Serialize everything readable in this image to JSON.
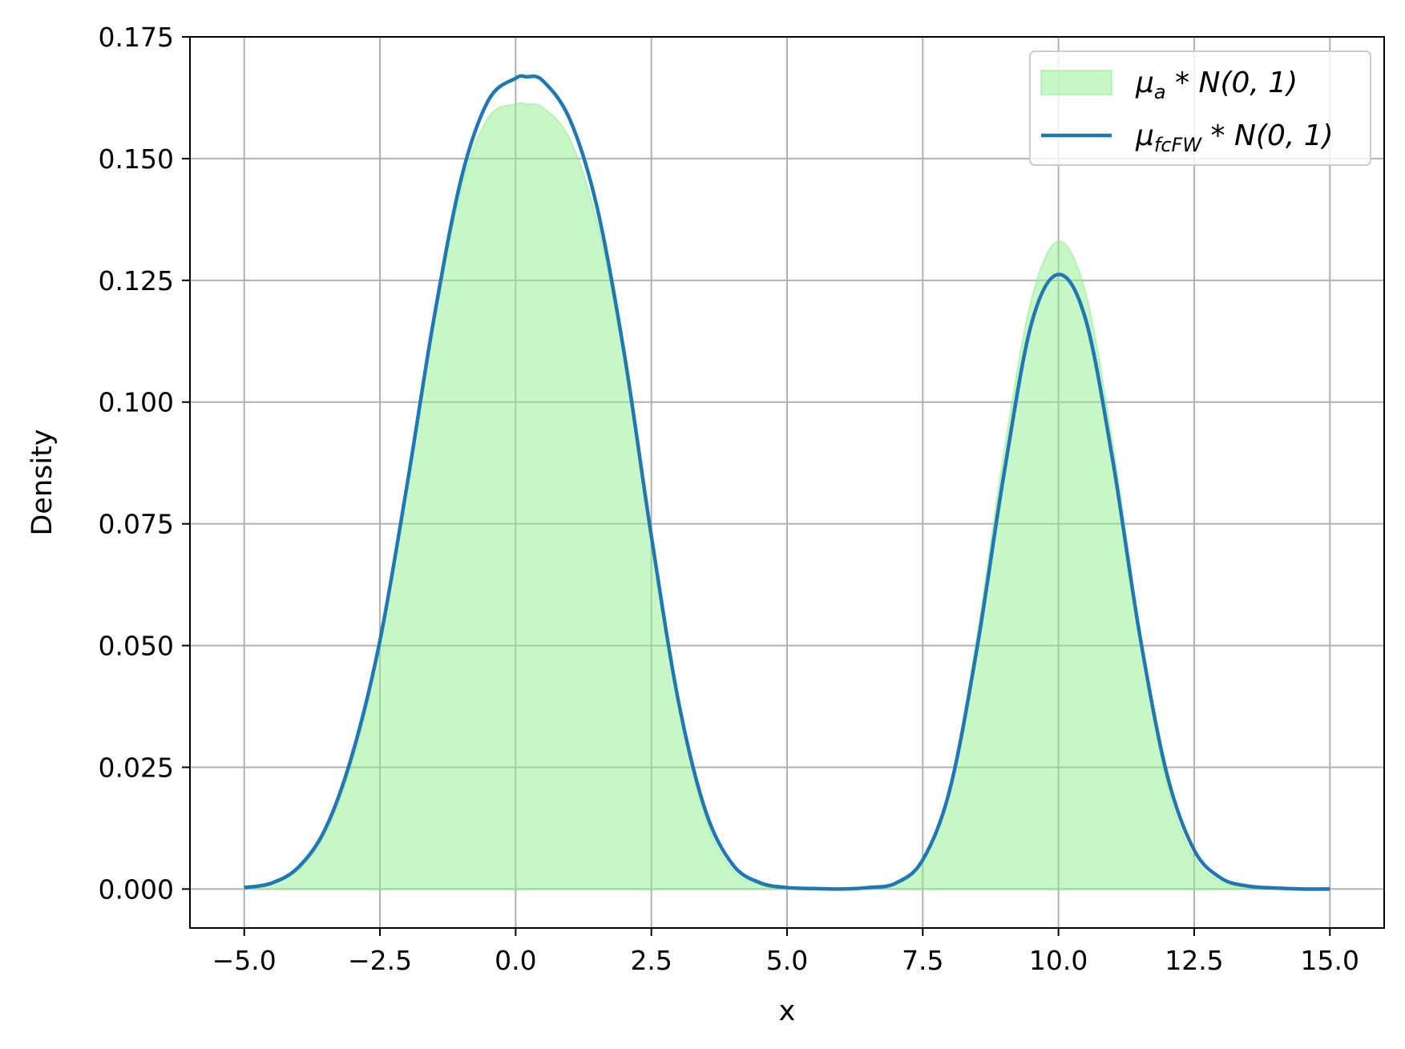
{
  "chart_data": {
    "type": "area",
    "title": "",
    "xlabel": "x",
    "ylabel": "Density",
    "xlim": [
      -6,
      16
    ],
    "ylim": [
      -0.008,
      0.175
    ],
    "xticks": [
      -5.0,
      -2.5,
      0.0,
      2.5,
      5.0,
      7.5,
      10.0,
      12.5,
      15.0
    ],
    "xtick_labels": [
      "−5.0",
      "−2.5",
      "0.0",
      "2.5",
      "5.0",
      "7.5",
      "10.0",
      "12.5",
      "15.0"
    ],
    "yticks": [
      0.0,
      0.025,
      0.05,
      0.075,
      0.1,
      0.125,
      0.15,
      0.175
    ],
    "ytick_labels": [
      "0.000",
      "0.025",
      "0.050",
      "0.075",
      "0.100",
      "0.125",
      "0.150",
      "0.175"
    ],
    "grid": true,
    "legend_position": "top-right",
    "x": [
      -5.0,
      -4.5,
      -4.0,
      -3.5,
      -3.0,
      -2.5,
      -2.0,
      -1.5,
      -1.0,
      -0.5,
      0.0,
      0.2,
      0.5,
      1.0,
      1.5,
      2.0,
      2.5,
      3.0,
      3.5,
      4.0,
      4.5,
      5.0,
      5.5,
      6.0,
      6.5,
      7.0,
      7.5,
      8.0,
      8.5,
      9.0,
      9.5,
      10.0,
      10.5,
      11.0,
      11.5,
      12.0,
      12.5,
      13.0,
      13.5,
      14.0,
      14.5,
      15.0
    ],
    "series": [
      {
        "name": "μ_a * N(0, 1)",
        "legend_main": "μ",
        "legend_sub": "a",
        "legend_tail": " * N(0, 1)",
        "style": "filled",
        "color": "#90ee90",
        "values": [
          0.0003,
          0.0011,
          0.004,
          0.0115,
          0.0265,
          0.05,
          0.082,
          0.116,
          0.144,
          0.1585,
          0.1612,
          0.1612,
          0.1605,
          0.154,
          0.137,
          0.109,
          0.072,
          0.038,
          0.0145,
          0.004,
          0.0009,
          0.0002,
          0.0,
          0.0,
          0.0002,
          0.001,
          0.0055,
          0.021,
          0.052,
          0.09,
          0.121,
          0.133,
          0.1225,
          0.0915,
          0.053,
          0.0215,
          0.0065,
          0.0015,
          0.0003,
          0.0001,
          0.0,
          0.0
        ]
      },
      {
        "name": "μ_fcFW * N(0, 1)",
        "legend_main": "μ",
        "legend_sub": "fcFW",
        "legend_tail": " * N(0, 1)",
        "style": "line",
        "color": "#1f77b4",
        "values": [
          0.0003,
          0.0012,
          0.0045,
          0.0125,
          0.028,
          0.051,
          0.083,
          0.1175,
          0.146,
          0.162,
          0.1665,
          0.1668,
          0.166,
          0.158,
          0.14,
          0.11,
          0.0725,
          0.0385,
          0.016,
          0.005,
          0.0013,
          0.0003,
          0.0001,
          0.0,
          0.0003,
          0.0012,
          0.006,
          0.0205,
          0.0495,
          0.0855,
          0.116,
          0.1262,
          0.117,
          0.088,
          0.052,
          0.0235,
          0.008,
          0.0022,
          0.0006,
          0.0002,
          0.0,
          0.0
        ]
      }
    ]
  }
}
